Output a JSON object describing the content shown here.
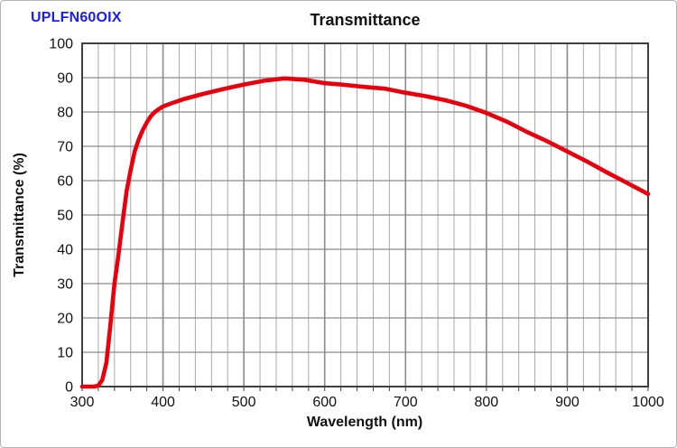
{
  "header": {
    "lens_label": "UPLFN60OIX",
    "title": "Transmittance"
  },
  "chart_data": {
    "type": "line",
    "title": "Transmittance",
    "xlabel": "Wavelength (nm)",
    "ylabel": "Transmittance (%)",
    "xlim": [
      300,
      1000
    ],
    "ylim": [
      0,
      100
    ],
    "x_major_ticks": [
      300,
      400,
      500,
      600,
      700,
      800,
      900,
      1000
    ],
    "x_minor_step_nm": 20,
    "y_major_ticks": [
      0,
      10,
      20,
      30,
      40,
      50,
      60,
      70,
      80,
      90,
      100
    ],
    "grid": "vertical major+minor every 20 nm, horizontal major every 10%",
    "legend": "none",
    "series": [
      {
        "name": "UPLFN60OIX transmittance",
        "color": "#e8000d",
        "x": [
          300,
          315,
          320,
          325,
          330,
          335,
          340,
          345,
          350,
          355,
          360,
          365,
          370,
          375,
          380,
          385,
          390,
          395,
          400,
          410,
          425,
          450,
          475,
          500,
          525,
          550,
          575,
          600,
          625,
          650,
          675,
          700,
          725,
          750,
          775,
          800,
          825,
          850,
          875,
          900,
          925,
          950,
          975,
          1000
        ],
        "y": [
          0,
          0,
          0.3,
          2,
          7,
          18,
          30,
          38.5,
          48,
          57,
          63,
          68.5,
          72,
          74.8,
          77,
          78.8,
          80,
          80.9,
          81.6,
          82.5,
          83.7,
          85.3,
          86.7,
          88,
          89.1,
          89.8,
          89.4,
          88.4,
          87.9,
          87.3,
          86.8,
          85.6,
          84.6,
          83.4,
          81.8,
          79.7,
          77.2,
          74.2,
          71.5,
          68.5,
          65.5,
          62.3,
          59.2,
          56.1
        ]
      }
    ],
    "colors": {
      "curve": "#e8000d",
      "lens_label": "#1a1aff",
      "grid_minor": "#ababab",
      "grid_major": "#8a8a8a",
      "axis_border": "#3f3f3f",
      "text": "#111111",
      "background": "#ffffff"
    }
  }
}
